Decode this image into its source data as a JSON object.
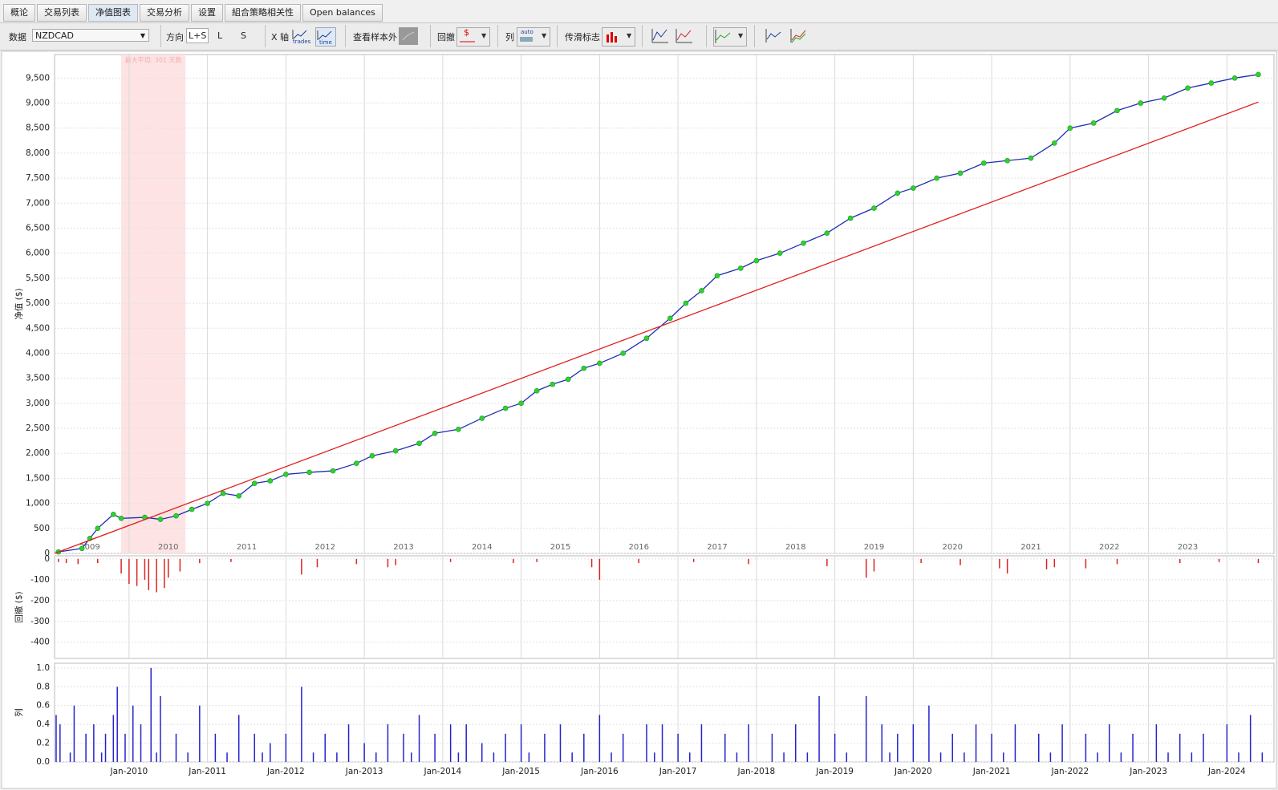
{
  "tabs": [
    "概论",
    "交易列表",
    "净值图表",
    "交易分析",
    "设置",
    "組合策略相关性",
    "Open balances"
  ],
  "toolbar": {
    "data_label": "数据",
    "symbol": "NZDCAD",
    "direction_label": "方向",
    "directions": [
      "L+S",
      "L",
      "S"
    ],
    "x_axis_label": "X 轴",
    "x_axis_options": [
      "trades",
      "time"
    ],
    "out_of_sample_label": "查看样本外",
    "drawdown_label": "回撤",
    "column_label": "列",
    "column_option": "auto",
    "flag_label": "传滑标志"
  },
  "chart_data": [
    {
      "type": "line",
      "y_label": "净值 ($)",
      "annotation": "最大平坦: 301 天数",
      "highlight": [
        2009.9,
        2010.72
      ],
      "xlim": [
        2009.05,
        2024.6
      ],
      "ylim": [
        0,
        9970
      ],
      "yticks": [
        0,
        500,
        {
          "value": 1000,
          "label": "1,000"
        },
        {
          "value": 1500,
          "label": "1,500"
        },
        {
          "value": 2000,
          "label": "2,000"
        },
        {
          "value": 2500,
          "label": "2,500"
        },
        {
          "value": 3000,
          "label": "3,000"
        },
        {
          "value": 3500,
          "label": "3,500"
        },
        {
          "value": 4000,
          "label": "4,000"
        },
        {
          "value": 4500,
          "label": "4,500"
        },
        {
          "value": 5000,
          "label": "5,000"
        },
        {
          "value": 5500,
          "label": "5,500"
        },
        {
          "value": 6000,
          "label": "6,000"
        },
        {
          "value": 6500,
          "label": "6,500"
        },
        {
          "value": 7000,
          "label": "7,000"
        },
        {
          "value": 7500,
          "label": "7,500"
        },
        {
          "value": 8000,
          "label": "8,000"
        },
        {
          "value": 8500,
          "label": "8,500"
        },
        {
          "value": 9000,
          "label": "9,000"
        },
        {
          "value": 9500,
          "label": "9,500"
        }
      ],
      "xticks": [
        {
          "value": 2009.5,
          "label": "2009"
        },
        {
          "value": 2010.5,
          "label": "2010"
        },
        {
          "value": 2011.5,
          "label": "2011"
        },
        {
          "value": 2012.5,
          "label": "2012"
        },
        {
          "value": 2013.5,
          "label": "2013"
        },
        {
          "value": 2014.5,
          "label": "2014"
        },
        {
          "value": 2015.5,
          "label": "2015"
        },
        {
          "value": 2016.5,
          "label": "2016"
        },
        {
          "value": 2017.5,
          "label": "2017"
        },
        {
          "value": 2018.5,
          "label": "2018"
        },
        {
          "value": 2019.5,
          "label": "2019"
        },
        {
          "value": 2020.5,
          "label": "2020"
        },
        {
          "value": 2021.5,
          "label": "2021"
        },
        {
          "value": 2022.5,
          "label": "2022"
        },
        {
          "value": 2023.5,
          "label": "2023"
        }
      ],
      "grid": true,
      "series": [
        {
          "color": "#1c2fb4",
          "marker_color": "#2fd12f",
          "x": [
            2009.1,
            2009.4,
            2009.5,
            2009.6,
            2009.8,
            2009.9,
            2010.2,
            2010.4,
            2010.6,
            2010.8,
            2011.0,
            2011.2,
            2011.4,
            2011.6,
            2011.8,
            2012.0,
            2012.3,
            2012.6,
            2012.9,
            2013.1,
            2013.4,
            2013.7,
            2013.9,
            2014.2,
            2014.5,
            2014.8,
            2015.0,
            2015.2,
            2015.4,
            2015.6,
            2015.8,
            2016.0,
            2016.3,
            2016.6,
            2016.9,
            2017.1,
            2017.3,
            2017.5,
            2017.8,
            2018.0,
            2018.3,
            2018.6,
            2018.9,
            2019.2,
            2019.5,
            2019.8,
            2020.0,
            2020.3,
            2020.6,
            2020.9,
            2021.2,
            2021.5,
            2021.8,
            2022.0,
            2022.3,
            2022.6,
            2022.9,
            2023.2,
            2023.5,
            2023.8,
            2024.1,
            2024.4
          ],
          "values": [
            30,
            100,
            300,
            500,
            780,
            700,
            720,
            680,
            750,
            880,
            1000,
            1200,
            1150,
            1400,
            1450,
            1580,
            1620,
            1650,
            1800,
            1950,
            2050,
            2200,
            2400,
            2480,
            2700,
            2900,
            3000,
            3250,
            3380,
            3480,
            3700,
            3800,
            4000,
            4300,
            4700,
            5000,
            5250,
            5550,
            5700,
            5850,
            6000,
            6200,
            6400,
            6700,
            6900,
            7200,
            7300,
            7500,
            7600,
            7800,
            7850,
            7900,
            8200,
            8500,
            8600,
            8850,
            9000,
            9100,
            9300,
            9400,
            9500,
            9570
          ]
        },
        {
          "color": "#e02020",
          "x": [
            2009.05,
            2024.4
          ],
          "values": [
            0,
            9020
          ]
        }
      ]
    },
    {
      "type": "bar",
      "y_label": "回撤 ($)",
      "color": "#dd2222",
      "xlim": [
        2009.05,
        2024.6
      ],
      "ylim": [
        -478,
        15
      ],
      "yticks": [
        0,
        -100,
        -200,
        -300,
        -400
      ],
      "grid": true,
      "x": [
        2009.1,
        2009.2,
        2009.35,
        2009.6,
        2009.9,
        2010.0,
        2010.1,
        2010.2,
        2010.25,
        2010.35,
        2010.45,
        2010.5,
        2010.65,
        2010.9,
        2011.3,
        2012.2,
        2012.4,
        2012.9,
        2013.3,
        2013.4,
        2014.1,
        2014.9,
        2015.2,
        2015.9,
        2016.0,
        2016.5,
        2017.2,
        2017.9,
        2018.9,
        2019.4,
        2019.5,
        2020.1,
        2020.6,
        2021.1,
        2021.2,
        2021.7,
        2021.8,
        2022.2,
        2022.6,
        2023.4,
        2023.9,
        2024.4
      ],
      "values": [
        -15,
        -20,
        -25,
        -20,
        -70,
        -120,
        -130,
        -100,
        -150,
        -160,
        -140,
        -90,
        -60,
        -20,
        -15,
        -75,
        -40,
        -25,
        -40,
        -30,
        -15,
        -20,
        -15,
        -40,
        -100,
        -20,
        -15,
        -25,
        -35,
        -90,
        -60,
        -20,
        -30,
        -45,
        -70,
        -50,
        -40,
        -45,
        -25,
        -20,
        -15,
        -20
      ]
    },
    {
      "type": "bar",
      "y_label": "列",
      "color": "#2424cc",
      "xlim": [
        2009.05,
        2024.6
      ],
      "ylim": [
        0,
        1.05
      ],
      "yticks": [
        {
          "value": 0,
          "label": "0.0"
        },
        {
          "value": 0.2,
          "label": "0.2"
        },
        {
          "value": 0.4,
          "label": "0.4"
        },
        {
          "value": 0.6,
          "label": "0.6"
        },
        {
          "value": 0.8,
          "label": "0.8"
        },
        {
          "value": 1,
          "label": "1.0"
        }
      ],
      "xticks": [
        {
          "value": 2010,
          "label": "Jan-2010"
        },
        {
          "value": 2011,
          "label": "Jan-2011"
        },
        {
          "value": 2012,
          "label": "Jan-2012"
        },
        {
          "value": 2013,
          "label": "Jan-2013"
        },
        {
          "value": 2014,
          "label": "Jan-2014"
        },
        {
          "value": 2015,
          "label": "Jan-2015"
        },
        {
          "value": 2016,
          "label": "Jan-2016"
        },
        {
          "value": 2017,
          "label": "Jan-2017"
        },
        {
          "value": 2018,
          "label": "Jan-2018"
        },
        {
          "value": 2019,
          "label": "Jan-2019"
        },
        {
          "value": 2020,
          "label": "Jan-2020"
        },
        {
          "value": 2021,
          "label": "Jan-2021"
        },
        {
          "value": 2022,
          "label": "Jan-2022"
        },
        {
          "value": 2023,
          "label": "Jan-2023"
        },
        {
          "value": 2024,
          "label": "Jan-2024"
        }
      ],
      "grid": true,
      "x": [
        2009.07,
        2009.12,
        2009.3,
        2009.45,
        2009.55,
        2009.7,
        2009.8,
        2009.85,
        2009.95,
        2010.05,
        2010.15,
        2010.28,
        2010.4,
        2010.6,
        2010.9,
        2011.1,
        2011.4,
        2011.6,
        2011.8,
        2012.0,
        2012.2,
        2012.5,
        2012.8,
        2013.0,
        2013.3,
        2013.5,
        2013.7,
        2013.9,
        2014.1,
        2014.3,
        2014.5,
        2014.8,
        2015.0,
        2015.3,
        2015.5,
        2015.8,
        2016.0,
        2016.3,
        2016.6,
        2016.8,
        2017.0,
        2017.3,
        2017.6,
        2017.9,
        2018.2,
        2018.5,
        2018.8,
        2019.0,
        2019.4,
        2019.6,
        2019.8,
        2020.0,
        2020.2,
        2020.5,
        2020.8,
        2021.0,
        2021.3,
        2021.6,
        2021.9,
        2022.2,
        2022.5,
        2022.8,
        2023.1,
        2023.4,
        2023.7,
        2024.0,
        2024.3,
        2009.25,
        2009.65,
        2010.35,
        2010.75,
        2011.25,
        2011.7,
        2012.35,
        2012.65,
        2013.15,
        2013.6,
        2014.2,
        2014.65,
        2015.1,
        2015.65,
        2016.15,
        2016.7,
        2017.15,
        2017.75,
        2018.35,
        2018.65,
        2019.15,
        2019.7,
        2020.35,
        2020.65,
        2021.15,
        2021.75,
        2022.35,
        2022.65,
        2023.25,
        2023.55,
        2024.15,
        2024.45
      ],
      "values": [
        0.5,
        0.4,
        0.6,
        0.3,
        0.4,
        0.3,
        0.5,
        0.8,
        0.3,
        0.6,
        0.4,
        1.0,
        0.7,
        0.3,
        0.6,
        0.3,
        0.5,
        0.3,
        0.2,
        0.3,
        0.8,
        0.3,
        0.4,
        0.2,
        0.4,
        0.3,
        0.5,
        0.3,
        0.4,
        0.4,
        0.2,
        0.3,
        0.4,
        0.3,
        0.4,
        0.3,
        0.5,
        0.3,
        0.4,
        0.4,
        0.3,
        0.4,
        0.3,
        0.4,
        0.3,
        0.4,
        0.7,
        0.3,
        0.7,
        0.4,
        0.3,
        0.4,
        0.6,
        0.3,
        0.4,
        0.3,
        0.4,
        0.3,
        0.4,
        0.3,
        0.4,
        0.3,
        0.4,
        0.3,
        0.3,
        0.4,
        0.5,
        0.1,
        0.1,
        0.1,
        0.1,
        0.1,
        0.1,
        0.1,
        0.1,
        0.1,
        0.1,
        0.1,
        0.1,
        0.1,
        0.1,
        0.1,
        0.1,
        0.1,
        0.1,
        0.1,
        0.1,
        0.1,
        0.1,
        0.1,
        0.1,
        0.1,
        0.1,
        0.1,
        0.1,
        0.1,
        0.1,
        0.1,
        0.1
      ]
    }
  ]
}
